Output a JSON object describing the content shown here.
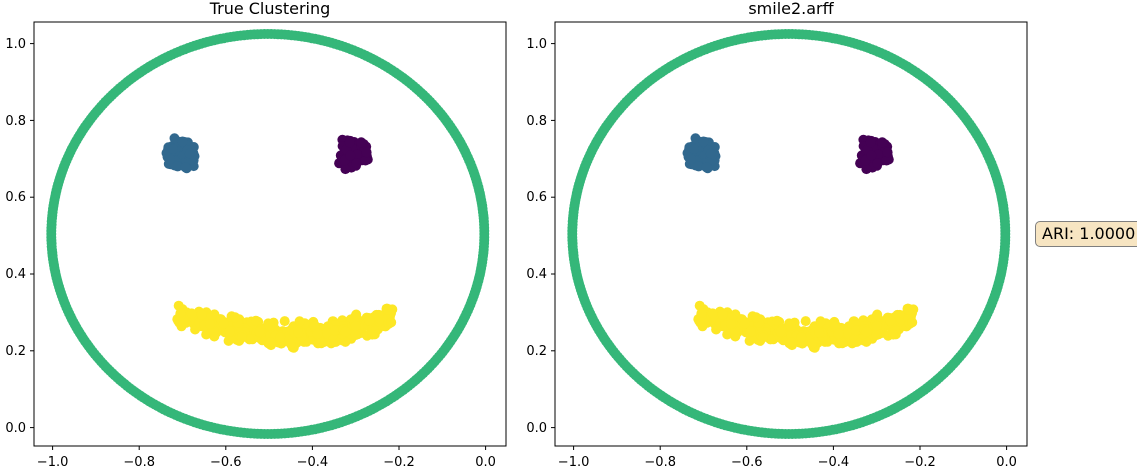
{
  "colors": {
    "eye_left": "#31688e",
    "eye_right": "#440154",
    "ring": "#35b779",
    "mouth": "#fde725",
    "ari_box_bg": "#f5deb3",
    "ari_box_border": "#7f7f7f"
  },
  "ari_label": "ARI: 1.0000",
  "chart_data": [
    {
      "type": "scatter",
      "title": "True Clustering",
      "xlabel": "",
      "ylabel": "",
      "xlim": [
        -1.04,
        0.05
      ],
      "ylim": [
        -0.03,
        1.03
      ],
      "xticks": [
        "−1.0",
        "−0.8",
        "−0.6",
        "−0.4",
        "−0.2",
        "0.0"
      ],
      "yticks": [
        "0.0",
        "0.2",
        "0.4",
        "0.6",
        "0.8",
        "1.0"
      ],
      "grid": false,
      "legend": "none",
      "series": [
        {
          "shape": "eye",
          "center": [
            -0.7,
            0.7
          ],
          "radius": 0.035,
          "count": 60,
          "color_key": "eye_left"
        },
        {
          "shape": "eye",
          "center": [
            -0.3,
            0.7
          ],
          "radius": 0.035,
          "count": 60,
          "color_key": "eye_right"
        },
        {
          "shape": "ring",
          "center": [
            -0.5,
            0.5
          ],
          "radius": 0.5,
          "count": 400,
          "color_key": "ring"
        },
        {
          "shape": "mouth",
          "x_range": [
            -0.71,
            -0.21
          ],
          "curve": "y = 0.25 + 0.75*(x+0.45)^2",
          "spread": 0.04,
          "count": 450,
          "color_key": "mouth"
        }
      ]
    },
    {
      "type": "scatter",
      "title": "smile2.arff",
      "xlabel": "",
      "ylabel": "",
      "xlim": [
        -1.04,
        0.05
      ],
      "ylim": [
        -0.03,
        1.03
      ],
      "xticks": [
        "−1.0",
        "−0.8",
        "−0.6",
        "−0.4",
        "−0.2",
        "0.0"
      ],
      "yticks": [
        "0.0",
        "0.2",
        "0.4",
        "0.6",
        "0.8",
        "1.0"
      ],
      "grid": false,
      "legend": "none",
      "series": [
        {
          "shape": "eye",
          "center": [
            -0.7,
            0.7
          ],
          "radius": 0.035,
          "count": 60,
          "color_key": "eye_left"
        },
        {
          "shape": "eye",
          "center": [
            -0.3,
            0.7
          ],
          "radius": 0.035,
          "count": 60,
          "color_key": "eye_right"
        },
        {
          "shape": "ring",
          "center": [
            -0.5,
            0.5
          ],
          "radius": 0.5,
          "count": 400,
          "color_key": "ring"
        },
        {
          "shape": "mouth",
          "x_range": [
            -0.71,
            -0.21
          ],
          "curve": "y = 0.25 + 0.75*(x+0.45)^2",
          "spread": 0.04,
          "count": 450,
          "color_key": "mouth"
        }
      ]
    }
  ]
}
